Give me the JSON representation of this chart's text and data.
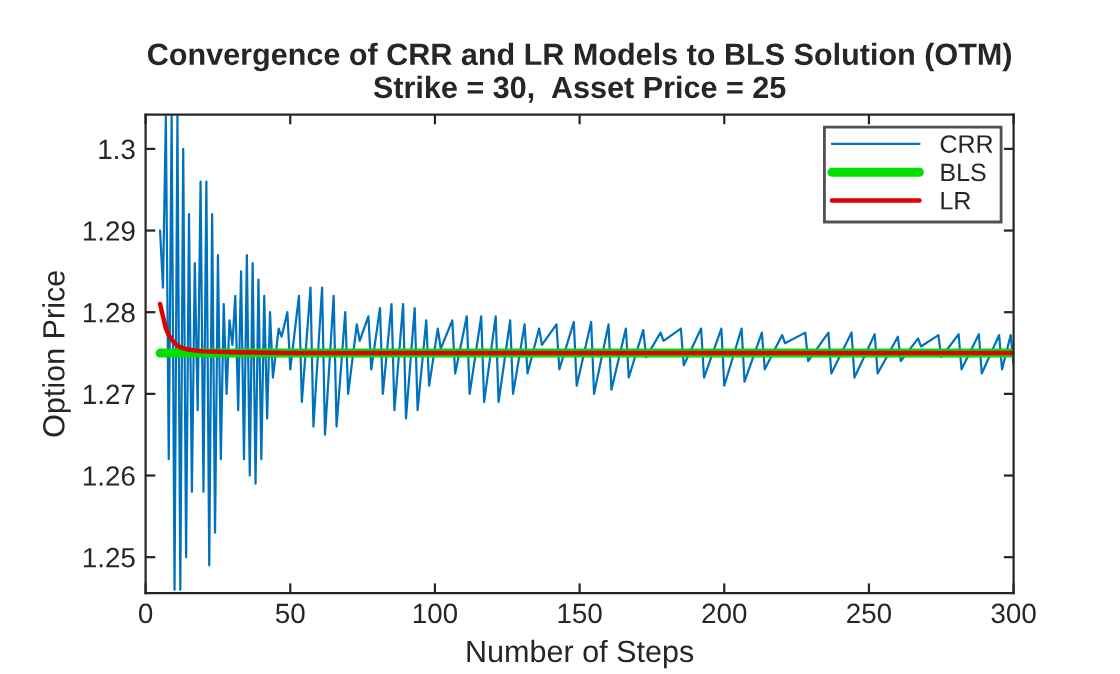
{
  "chart_data": {
    "type": "line",
    "title": "Convergence of CRR and LR Models to BLS Solution (OTM)\nStrike = 30,  Asset Price = 25",
    "xlabel": "Number of Steps",
    "ylabel": "Option Price",
    "xlim": [
      0,
      300
    ],
    "xticks": [
      0,
      50,
      100,
      150,
      200,
      250,
      300
    ],
    "ylim": [
      1.2456,
      1.3042
    ],
    "yticks": [
      1.25,
      1.26,
      1.27,
      1.28,
      1.29,
      1.3
    ],
    "grid": false,
    "legend": "top right",
    "marker": "none",
    "line_style": "solid",
    "series": [
      {
        "name": "CRR",
        "color": "#0072bd",
        "x": [
          5,
          6,
          7,
          8,
          9,
          10,
          11,
          12,
          13,
          14,
          15,
          16,
          17,
          18,
          19,
          20,
          21,
          22,
          23,
          24,
          25,
          26,
          27,
          28,
          29,
          30,
          31,
          32,
          33,
          34,
          35,
          36,
          37,
          38,
          39,
          40,
          41,
          42,
          43,
          44,
          46,
          47,
          49,
          50,
          53,
          54,
          57,
          58,
          61,
          62,
          65,
          66,
          69,
          70,
          73,
          74,
          77,
          78,
          81,
          82,
          85,
          86,
          89,
          90,
          93,
          94,
          97,
          98,
          101,
          102,
          106,
          107,
          111,
          112,
          116,
          117,
          121,
          122,
          126,
          127,
          131,
          132,
          136,
          137,
          142,
          143,
          148,
          149,
          154,
          155,
          160,
          161,
          166,
          167,
          172,
          173,
          178,
          179,
          185,
          186,
          192,
          193,
          199,
          200,
          206,
          207,
          213,
          214,
          220,
          221,
          228,
          229,
          236,
          237,
          244,
          245,
          252,
          253,
          260,
          261,
          267,
          268,
          274,
          275,
          281,
          282,
          288,
          289,
          295,
          296,
          299,
          300
        ],
        "values": [
          1.29,
          1.283,
          1.304,
          1.262,
          1.304,
          1.246,
          1.304,
          1.246,
          1.3,
          1.25,
          1.292,
          1.258,
          1.286,
          1.268,
          1.296,
          1.258,
          1.296,
          1.249,
          1.292,
          1.253,
          1.287,
          1.262,
          1.281,
          1.27,
          1.279,
          1.276,
          1.282,
          1.268,
          1.285,
          1.262,
          1.287,
          1.26,
          1.286,
          1.259,
          1.284,
          1.262,
          1.282,
          1.267,
          1.28,
          1.272,
          1.278,
          1.277,
          1.28,
          1.273,
          1.282,
          1.269,
          1.283,
          1.266,
          1.283,
          1.265,
          1.282,
          1.266,
          1.28,
          1.27,
          1.2785,
          1.2765,
          1.2795,
          1.273,
          1.2805,
          1.27,
          1.281,
          1.268,
          1.281,
          1.267,
          1.2805,
          1.268,
          1.279,
          1.271,
          1.278,
          1.2755,
          1.279,
          1.2725,
          1.2795,
          1.27,
          1.2795,
          1.269,
          1.2795,
          1.269,
          1.279,
          1.27,
          1.2785,
          1.2725,
          1.278,
          1.276,
          1.2785,
          1.273,
          1.2788,
          1.271,
          1.2788,
          1.27,
          1.2785,
          1.2705,
          1.278,
          1.272,
          1.2778,
          1.2745,
          1.2775,
          1.2765,
          1.278,
          1.2735,
          1.278,
          1.272,
          1.278,
          1.271,
          1.278,
          1.2715,
          1.2775,
          1.273,
          1.2772,
          1.2762,
          1.2775,
          1.274,
          1.2775,
          1.2725,
          1.2775,
          1.272,
          1.2773,
          1.2725,
          1.277,
          1.274,
          1.2768,
          1.2758,
          1.2772,
          1.2745,
          1.2773,
          1.273,
          1.2773,
          1.2725,
          1.2772,
          1.273,
          1.2772,
          1.2735
        ]
      },
      {
        "name": "BLS",
        "color": "#00e000",
        "x": [
          5,
          300
        ],
        "values": [
          1.275,
          1.275
        ]
      },
      {
        "name": "LR",
        "color": "#e00000",
        "x": [
          5,
          6,
          7,
          8,
          10,
          12,
          15,
          20,
          30,
          50,
          300
        ],
        "values": [
          1.281,
          1.2795,
          1.278,
          1.2772,
          1.2762,
          1.2757,
          1.2754,
          1.2752,
          1.2751,
          1.275,
          1.275
        ]
      }
    ]
  }
}
